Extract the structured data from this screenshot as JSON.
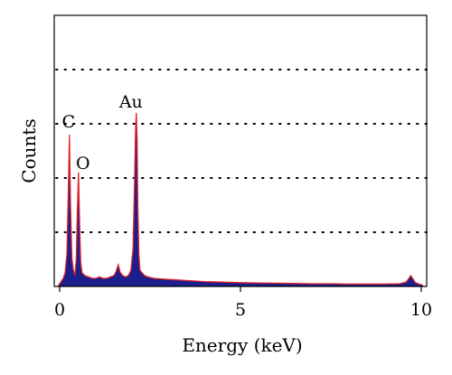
{
  "chart_data": {
    "type": "area",
    "xlabel": "Energy (keV)",
    "ylabel": "Counts",
    "xlim": [
      -0.15,
      10.15
    ],
    "ylim": [
      0,
      100
    ],
    "x_ticks": [
      "0",
      "5",
      "10"
    ],
    "x_tick_values": [
      0,
      5,
      10
    ],
    "y_ticks_shown": false,
    "grid": "horizontal-dotted",
    "grid_levels": [
      20,
      40,
      60,
      80
    ],
    "colors": {
      "fill": "#1a1f8c",
      "outline": "#e0202a",
      "axis": "#000000",
      "grid": "#000000"
    },
    "peaks": [
      {
        "label": "C",
        "energy_kev": 0.27,
        "counts": 56
      },
      {
        "label": "O",
        "energy_kev": 0.52,
        "counts": 42
      },
      {
        "label": "",
        "energy_kev": 1.62,
        "counts": 8
      },
      {
        "label": "Au",
        "energy_kev": 2.12,
        "counts": 64
      },
      {
        "label": "",
        "energy_kev": 9.71,
        "counts": 4
      }
    ],
    "series": [
      {
        "x": [
          -0.05,
          0.0,
          0.05,
          0.1,
          0.15,
          0.2,
          0.24,
          0.27,
          0.3,
          0.34,
          0.38,
          0.42,
          0.46,
          0.49,
          0.52,
          0.55,
          0.58,
          0.62,
          0.7,
          0.8,
          0.9,
          1.0,
          1.1,
          1.2,
          1.3,
          1.4,
          1.5,
          1.56,
          1.62,
          1.68,
          1.75,
          1.82,
          1.9,
          1.97,
          2.03,
          2.07,
          2.1,
          2.12,
          2.14,
          2.16,
          2.19,
          2.22,
          2.28,
          2.35,
          2.45,
          2.6,
          2.8,
          3.0,
          3.25,
          3.5,
          3.75,
          4.0,
          4.5,
          5.0,
          5.5,
          6.0,
          6.5,
          7.0,
          7.5,
          8.0,
          8.5,
          9.0,
          9.4,
          9.58,
          9.66,
          9.71,
          9.76,
          9.83,
          9.95,
          10.05
        ],
        "y": [
          0,
          1,
          2,
          3,
          5,
          12,
          35,
          56,
          30,
          10,
          6,
          4,
          10,
          28,
          42,
          24,
          9,
          5,
          4,
          3.5,
          3,
          3,
          3.5,
          3,
          3,
          3.5,
          4,
          5.5,
          8,
          5,
          4,
          3.5,
          4,
          6,
          14,
          38,
          58,
          64,
          55,
          30,
          12,
          6,
          5,
          4,
          3.5,
          3,
          2.8,
          2.6,
          2.4,
          2.2,
          2,
          1.8,
          1.6,
          1.4,
          1.3,
          1.2,
          1.1,
          1,
          1,
          0.9,
          0.9,
          0.9,
          1,
          1.6,
          3,
          4,
          3,
          1.5,
          0.8,
          0.5
        ]
      }
    ]
  }
}
